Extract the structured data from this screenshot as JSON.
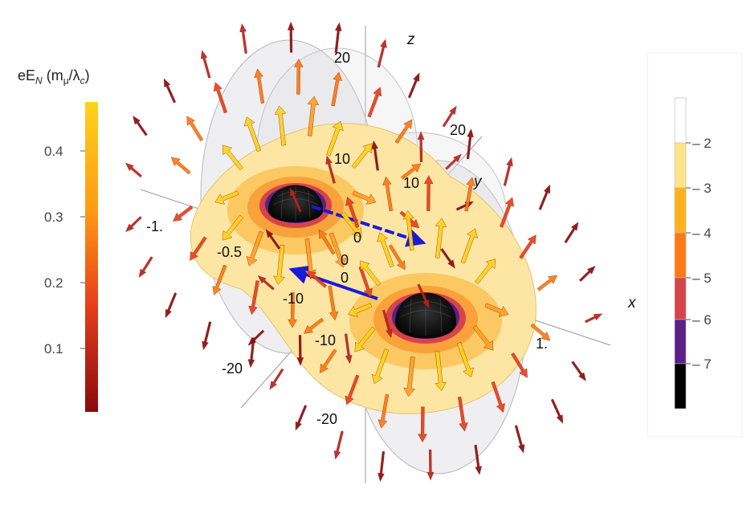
{
  "left_legend": {
    "title_prefix": "eE",
    "title_sub": "N",
    "title_units": "(m",
    "title_units_sub": "μ",
    "title_units_tail": "/λ",
    "title_units_tail_sub": "c",
    "title_close": ")",
    "ticks": [
      "0.4",
      "0.3",
      "0.2",
      "0.1"
    ],
    "gradient_top": "#ffd21a",
    "gradient_mid": "#ff7a0a",
    "gradient_low": "#e0301c",
    "gradient_bottom": "#8a0a0e"
  },
  "right_legend": {
    "title_prefix": "eV",
    "title_sub": "N",
    "title_units": "(m",
    "title_units_sub": "μ",
    "title_close": ")",
    "ticks": [
      "2",
      "3",
      "4",
      "5",
      "6",
      "7"
    ],
    "bands": [
      "#ffffff",
      "#ffe48a",
      "#ffb21e",
      "#ff7a14",
      "#d6444a",
      "#5b2088",
      "#000000"
    ]
  },
  "axes": {
    "z_label": "z",
    "y_label": "y",
    "x_label": "x",
    "z_ticks": [
      "20",
      "10",
      "0",
      "-10",
      "-20"
    ],
    "y_ticks": [
      "20",
      "10",
      "0",
      "-10",
      "-20"
    ],
    "x_ticks": [
      "-1.",
      "-0.5",
      "0",
      "1."
    ]
  },
  "colors": {
    "arrow_blue": "#1a1ad8",
    "shell": "#d8d8dc",
    "disk_pale": "#fde6a4",
    "disk_mid": "#fcc45a",
    "disk_orange": "#f9a13a",
    "core": "#000000"
  }
}
